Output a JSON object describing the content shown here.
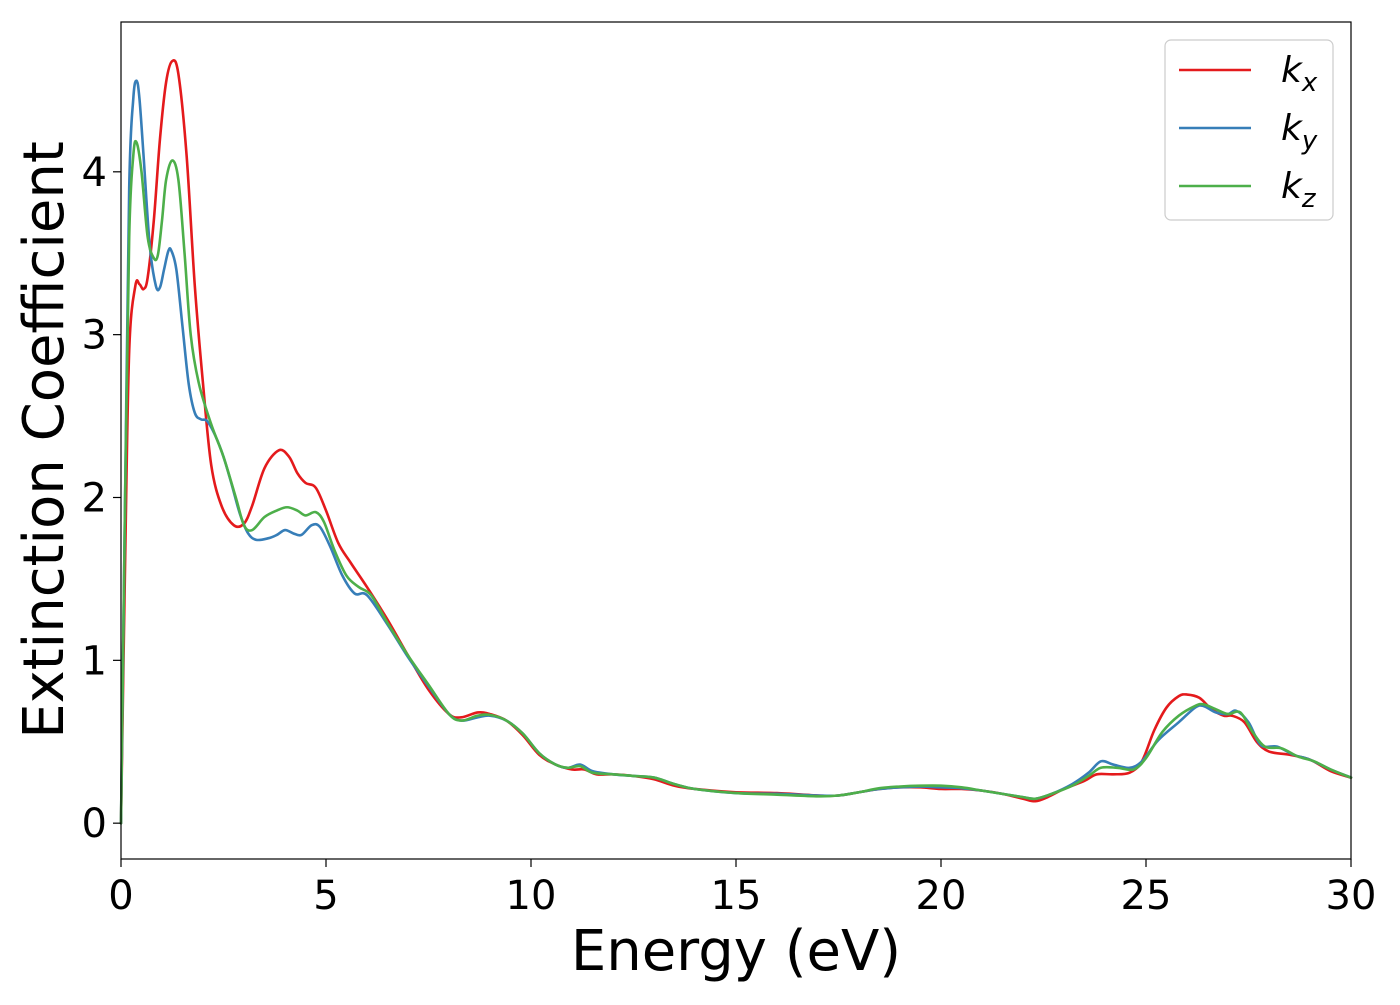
{
  "chart_data": {
    "type": "line",
    "xlabel": "Energy (eV)",
    "ylabel": "Extinction Coefficient",
    "xlim": [
      0,
      30
    ],
    "ylim": [
      -0.22,
      4.92
    ],
    "xticks": [
      0,
      5,
      10,
      15,
      20,
      25,
      30
    ],
    "xtick_labels": [
      "0",
      "5",
      "10",
      "15",
      "20",
      "25",
      "30"
    ],
    "yticks": [
      0,
      1,
      2,
      3,
      4
    ],
    "ytick_labels": [
      "0",
      "1",
      "2",
      "3",
      "4"
    ],
    "grid": false,
    "legend_position": "top-right",
    "series": [
      {
        "name": "k",
        "subscript": "x",
        "color": "#e41a1c",
        "points": [
          [
            0,
            0
          ],
          [
            0.1,
            1.6
          ],
          [
            0.2,
            2.9
          ],
          [
            0.35,
            3.3
          ],
          [
            0.45,
            3.31
          ],
          [
            0.55,
            3.28
          ],
          [
            0.65,
            3.35
          ],
          [
            0.8,
            3.7
          ],
          [
            0.95,
            4.2
          ],
          [
            1.1,
            4.55
          ],
          [
            1.25,
            4.68
          ],
          [
            1.4,
            4.6
          ],
          [
            1.6,
            4.1
          ],
          [
            1.8,
            3.3
          ],
          [
            2.0,
            2.7
          ],
          [
            2.2,
            2.2
          ],
          [
            2.45,
            1.95
          ],
          [
            2.75,
            1.83
          ],
          [
            3.0,
            1.84
          ],
          [
            3.2,
            1.95
          ],
          [
            3.5,
            2.18
          ],
          [
            3.85,
            2.29
          ],
          [
            4.1,
            2.25
          ],
          [
            4.3,
            2.15
          ],
          [
            4.5,
            2.09
          ],
          [
            4.75,
            2.06
          ],
          [
            5.0,
            1.92
          ],
          [
            5.3,
            1.72
          ],
          [
            5.6,
            1.6
          ],
          [
            6.0,
            1.45
          ],
          [
            6.5,
            1.25
          ],
          [
            7.0,
            1.03
          ],
          [
            7.5,
            0.82
          ],
          [
            8.0,
            0.67
          ],
          [
            8.3,
            0.65
          ],
          [
            8.7,
            0.68
          ],
          [
            9.0,
            0.67
          ],
          [
            9.4,
            0.63
          ],
          [
            9.8,
            0.54
          ],
          [
            10.2,
            0.42
          ],
          [
            10.6,
            0.36
          ],
          [
            11.0,
            0.33
          ],
          [
            11.3,
            0.33
          ],
          [
            11.6,
            0.3
          ],
          [
            12.0,
            0.3
          ],
          [
            12.5,
            0.29
          ],
          [
            13.0,
            0.27
          ],
          [
            13.5,
            0.23
          ],
          [
            14.0,
            0.21
          ],
          [
            15.0,
            0.19
          ],
          [
            16.0,
            0.185
          ],
          [
            17.0,
            0.17
          ],
          [
            17.5,
            0.17
          ],
          [
            18.0,
            0.19
          ],
          [
            18.5,
            0.21
          ],
          [
            19.0,
            0.22
          ],
          [
            19.5,
            0.22
          ],
          [
            20.0,
            0.21
          ],
          [
            20.5,
            0.21
          ],
          [
            21.0,
            0.2
          ],
          [
            21.5,
            0.18
          ],
          [
            22.0,
            0.15
          ],
          [
            22.3,
            0.135
          ],
          [
            22.6,
            0.16
          ],
          [
            23.0,
            0.21
          ],
          [
            23.5,
            0.26
          ],
          [
            23.8,
            0.3
          ],
          [
            24.2,
            0.3
          ],
          [
            24.6,
            0.31
          ],
          [
            24.9,
            0.38
          ],
          [
            25.2,
            0.57
          ],
          [
            25.5,
            0.71
          ],
          [
            25.8,
            0.78
          ],
          [
            26.0,
            0.79
          ],
          [
            26.3,
            0.77
          ],
          [
            26.6,
            0.7
          ],
          [
            26.9,
            0.66
          ],
          [
            27.1,
            0.66
          ],
          [
            27.4,
            0.62
          ],
          [
            27.7,
            0.5
          ],
          [
            28.0,
            0.44
          ],
          [
            28.5,
            0.42
          ],
          [
            29.0,
            0.39
          ],
          [
            29.5,
            0.32
          ],
          [
            30.0,
            0.28
          ]
        ]
      },
      {
        "name": "k",
        "subscript": "y",
        "color": "#377eb8",
        "points": [
          [
            0,
            0
          ],
          [
            0.1,
            2.0
          ],
          [
            0.2,
            3.9
          ],
          [
            0.3,
            4.45
          ],
          [
            0.38,
            4.56
          ],
          [
            0.45,
            4.45
          ],
          [
            0.55,
            4.1
          ],
          [
            0.7,
            3.55
          ],
          [
            0.85,
            3.3
          ],
          [
            0.95,
            3.29
          ],
          [
            1.05,
            3.4
          ],
          [
            1.15,
            3.51
          ],
          [
            1.22,
            3.52
          ],
          [
            1.35,
            3.4
          ],
          [
            1.5,
            3.05
          ],
          [
            1.65,
            2.7
          ],
          [
            1.8,
            2.52
          ],
          [
            1.95,
            2.48
          ],
          [
            2.1,
            2.47
          ],
          [
            2.3,
            2.38
          ],
          [
            2.5,
            2.25
          ],
          [
            2.7,
            2.08
          ],
          [
            2.9,
            1.9
          ],
          [
            3.1,
            1.78
          ],
          [
            3.3,
            1.74
          ],
          [
            3.6,
            1.75
          ],
          [
            3.8,
            1.77
          ],
          [
            4.0,
            1.8
          ],
          [
            4.2,
            1.78
          ],
          [
            4.4,
            1.77
          ],
          [
            4.65,
            1.83
          ],
          [
            4.85,
            1.82
          ],
          [
            5.1,
            1.7
          ],
          [
            5.4,
            1.52
          ],
          [
            5.7,
            1.41
          ],
          [
            6.0,
            1.4
          ],
          [
            6.5,
            1.22
          ],
          [
            7.0,
            1.02
          ],
          [
            7.5,
            0.84
          ],
          [
            8.0,
            0.67
          ],
          [
            8.3,
            0.63
          ],
          [
            8.7,
            0.65
          ],
          [
            9.0,
            0.66
          ],
          [
            9.4,
            0.63
          ],
          [
            9.8,
            0.55
          ],
          [
            10.2,
            0.43
          ],
          [
            10.6,
            0.36
          ],
          [
            10.9,
            0.34
          ],
          [
            11.2,
            0.36
          ],
          [
            11.5,
            0.32
          ],
          [
            12.0,
            0.3
          ],
          [
            12.5,
            0.29
          ],
          [
            13.0,
            0.28
          ],
          [
            13.5,
            0.24
          ],
          [
            14.0,
            0.21
          ],
          [
            15.0,
            0.185
          ],
          [
            16.0,
            0.18
          ],
          [
            17.0,
            0.17
          ],
          [
            17.5,
            0.17
          ],
          [
            18.0,
            0.19
          ],
          [
            18.5,
            0.21
          ],
          [
            19.0,
            0.22
          ],
          [
            19.5,
            0.225
          ],
          [
            20.0,
            0.22
          ],
          [
            20.5,
            0.215
          ],
          [
            21.0,
            0.2
          ],
          [
            21.5,
            0.18
          ],
          [
            22.0,
            0.16
          ],
          [
            22.3,
            0.15
          ],
          [
            22.7,
            0.18
          ],
          [
            23.2,
            0.24
          ],
          [
            23.6,
            0.31
          ],
          [
            23.9,
            0.38
          ],
          [
            24.2,
            0.36
          ],
          [
            24.6,
            0.34
          ],
          [
            24.9,
            0.38
          ],
          [
            25.3,
            0.51
          ],
          [
            25.8,
            0.62
          ],
          [
            26.2,
            0.71
          ],
          [
            26.4,
            0.72
          ],
          [
            26.7,
            0.68
          ],
          [
            27.0,
            0.67
          ],
          [
            27.2,
            0.69
          ],
          [
            27.5,
            0.62
          ],
          [
            27.8,
            0.48
          ],
          [
            28.2,
            0.47
          ],
          [
            28.6,
            0.42
          ],
          [
            29.0,
            0.39
          ],
          [
            29.5,
            0.33
          ],
          [
            30.0,
            0.28
          ]
        ]
      },
      {
        "name": "k",
        "subscript": "z",
        "color": "#4daf4a",
        "points": [
          [
            0,
            0
          ],
          [
            0.1,
            2.0
          ],
          [
            0.2,
            3.6
          ],
          [
            0.3,
            4.1
          ],
          [
            0.38,
            4.18
          ],
          [
            0.5,
            4.0
          ],
          [
            0.65,
            3.6
          ],
          [
            0.8,
            3.47
          ],
          [
            0.9,
            3.49
          ],
          [
            1.0,
            3.7
          ],
          [
            1.1,
            3.95
          ],
          [
            1.25,
            4.07
          ],
          [
            1.4,
            3.95
          ],
          [
            1.55,
            3.5
          ],
          [
            1.7,
            3.0
          ],
          [
            1.9,
            2.7
          ],
          [
            2.2,
            2.45
          ],
          [
            2.5,
            2.25
          ],
          [
            2.8,
            2.0
          ],
          [
            3.0,
            1.83
          ],
          [
            3.2,
            1.8
          ],
          [
            3.5,
            1.88
          ],
          [
            3.8,
            1.92
          ],
          [
            4.05,
            1.94
          ],
          [
            4.3,
            1.92
          ],
          [
            4.5,
            1.89
          ],
          [
            4.75,
            1.91
          ],
          [
            4.95,
            1.85
          ],
          [
            5.2,
            1.68
          ],
          [
            5.5,
            1.52
          ],
          [
            5.8,
            1.45
          ],
          [
            6.1,
            1.4
          ],
          [
            6.5,
            1.23
          ],
          [
            7.0,
            1.03
          ],
          [
            7.5,
            0.85
          ],
          [
            8.0,
            0.67
          ],
          [
            8.3,
            0.63
          ],
          [
            8.7,
            0.66
          ],
          [
            9.0,
            0.665
          ],
          [
            9.4,
            0.63
          ],
          [
            9.8,
            0.55
          ],
          [
            10.2,
            0.43
          ],
          [
            10.6,
            0.36
          ],
          [
            10.9,
            0.34
          ],
          [
            11.2,
            0.35
          ],
          [
            11.5,
            0.31
          ],
          [
            12.0,
            0.3
          ],
          [
            12.5,
            0.29
          ],
          [
            13.0,
            0.28
          ],
          [
            13.5,
            0.24
          ],
          [
            14.0,
            0.21
          ],
          [
            15.0,
            0.185
          ],
          [
            16.0,
            0.175
          ],
          [
            17.0,
            0.165
          ],
          [
            17.5,
            0.17
          ],
          [
            18.0,
            0.19
          ],
          [
            18.5,
            0.215
          ],
          [
            19.0,
            0.225
          ],
          [
            19.5,
            0.23
          ],
          [
            20.0,
            0.23
          ],
          [
            20.5,
            0.22
          ],
          [
            21.0,
            0.2
          ],
          [
            21.5,
            0.18
          ],
          [
            22.0,
            0.16
          ],
          [
            22.3,
            0.15
          ],
          [
            22.7,
            0.18
          ],
          [
            23.2,
            0.23
          ],
          [
            23.6,
            0.29
          ],
          [
            23.9,
            0.34
          ],
          [
            24.3,
            0.34
          ],
          [
            24.7,
            0.33
          ],
          [
            25.0,
            0.4
          ],
          [
            25.4,
            0.56
          ],
          [
            25.8,
            0.66
          ],
          [
            26.2,
            0.72
          ],
          [
            26.4,
            0.73
          ],
          [
            26.7,
            0.7
          ],
          [
            27.0,
            0.67
          ],
          [
            27.3,
            0.68
          ],
          [
            27.6,
            0.56
          ],
          [
            27.9,
            0.47
          ],
          [
            28.3,
            0.46
          ],
          [
            28.7,
            0.41
          ],
          [
            29.1,
            0.38
          ],
          [
            29.5,
            0.33
          ],
          [
            30.0,
            0.28
          ]
        ]
      }
    ]
  }
}
